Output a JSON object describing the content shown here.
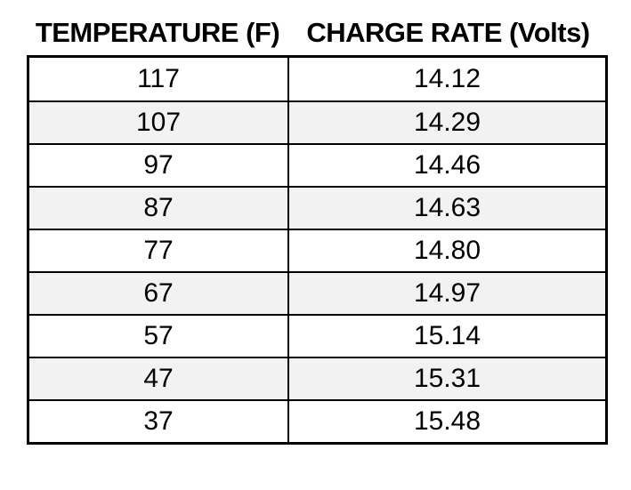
{
  "colors": {
    "background": "#ffffff",
    "row_alt": "#f2f2f2",
    "border": "#000000",
    "text": "#000000"
  },
  "header": {
    "temperature": "TEMPERATURE (F)",
    "charge_rate": "CHARGE RATE (Volts)"
  },
  "rows": [
    {
      "temp": "117",
      "rate": "14.12"
    },
    {
      "temp": "107",
      "rate": "14.29"
    },
    {
      "temp": "97",
      "rate": "14.46"
    },
    {
      "temp": "87",
      "rate": "14.63"
    },
    {
      "temp": "77",
      "rate": "14.80"
    },
    {
      "temp": "67",
      "rate": "14.97"
    },
    {
      "temp": "57",
      "rate": "15.14"
    },
    {
      "temp": "47",
      "rate": "15.31"
    },
    {
      "temp": "37",
      "rate": "15.48"
    }
  ],
  "chart_data": {
    "type": "table",
    "title": "",
    "columns": [
      "TEMPERATURE (F)",
      "CHARGE RATE (Volts)"
    ],
    "rows": [
      [
        117,
        14.12
      ],
      [
        107,
        14.29
      ],
      [
        97,
        14.46
      ],
      [
        87,
        14.63
      ],
      [
        77,
        14.8
      ],
      [
        67,
        14.97
      ],
      [
        57,
        15.14
      ],
      [
        47,
        15.31
      ],
      [
        37,
        15.48
      ]
    ],
    "layout_hints": {
      "striped_rows": "even rows shaded #f2f2f2",
      "header_outside_border": true,
      "temperature_step": -10,
      "charge_rate_step": 0.17
    }
  }
}
